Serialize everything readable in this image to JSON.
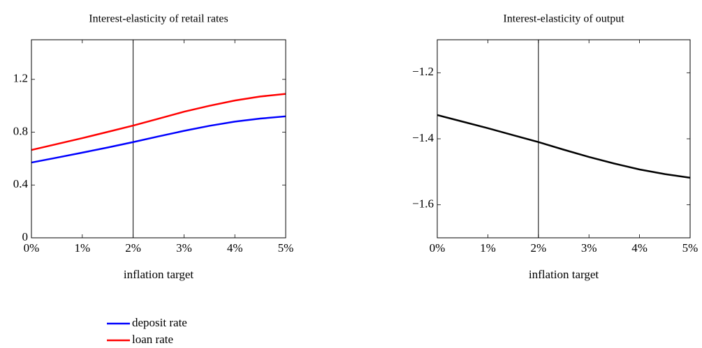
{
  "chart_data": [
    {
      "type": "line",
      "title": "Interest-elasticity of retail rates",
      "xlabel": "inflation target",
      "x": [
        0,
        0.5,
        1,
        1.5,
        2,
        2.5,
        3,
        3.5,
        4,
        4.5,
        5
      ],
      "series": [
        {
          "name": "deposit rate",
          "color": "#0000ff",
          "values": [
            0.57,
            0.607,
            0.645,
            0.684,
            0.725,
            0.768,
            0.81,
            0.848,
            0.88,
            0.903,
            0.92
          ]
        },
        {
          "name": "loan rate",
          "color": "#ff0000",
          "values": [
            0.665,
            0.71,
            0.755,
            0.802,
            0.85,
            0.902,
            0.955,
            1.0,
            1.04,
            1.07,
            1.09
          ]
        }
      ],
      "xlim": [
        0,
        5
      ],
      "xticks": [
        {
          "value": 0,
          "label": "0%"
        },
        {
          "value": 1,
          "label": "1%"
        },
        {
          "value": 2,
          "label": "2%"
        },
        {
          "value": 3,
          "label": "3%"
        },
        {
          "value": 4,
          "label": "4%"
        },
        {
          "value": 5,
          "label": "5%"
        }
      ],
      "ylim": [
        0,
        1.5
      ],
      "yticks": [
        0,
        0.4,
        0.8,
        1.2
      ],
      "vline": 2,
      "grid": false,
      "legend": "below"
    },
    {
      "type": "line",
      "title": "Interest-elasticity of output",
      "xlabel": "inflation target",
      "x": [
        0,
        0.5,
        1,
        1.5,
        2,
        2.5,
        3,
        3.5,
        4,
        4.5,
        5
      ],
      "series": [
        {
          "color": "#000000",
          "values": [
            -1.328,
            -1.348,
            -1.368,
            -1.389,
            -1.41,
            -1.433,
            -1.455,
            -1.475,
            -1.493,
            -1.507,
            -1.518
          ]
        }
      ],
      "xlim": [
        0,
        5
      ],
      "xticks": [
        {
          "value": 0,
          "label": "0%"
        },
        {
          "value": 1,
          "label": "1%"
        },
        {
          "value": 2,
          "label": "2%"
        },
        {
          "value": 3,
          "label": "3%"
        },
        {
          "value": 4,
          "label": "4%"
        },
        {
          "value": 5,
          "label": "5%"
        }
      ],
      "ylim": [
        -1.7,
        -1.1
      ],
      "yticks": [
        {
          "value": -1.6,
          "label": "−1.6"
        },
        {
          "value": -1.4,
          "label": "−1.4"
        },
        {
          "value": -1.2,
          "label": "−1.2"
        }
      ],
      "vline": 2,
      "grid": false
    }
  ]
}
